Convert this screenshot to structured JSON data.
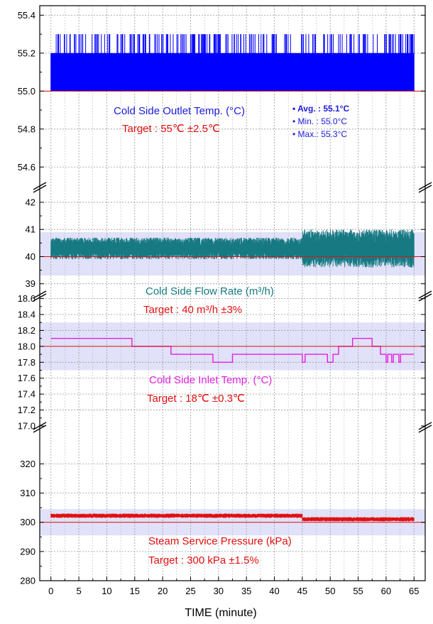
{
  "chart_data": {
    "type": "line",
    "xlabel": "TIME (minute)",
    "xlim": [
      -2,
      67
    ],
    "xticks": [
      0,
      5,
      10,
      15,
      20,
      25,
      30,
      35,
      40,
      45,
      50,
      55,
      60,
      65
    ],
    "grid": true,
    "panels": [
      {
        "ylim": [
          54.5,
          55.45
        ],
        "yticks": [
          55.4,
          55.2,
          55.0,
          54.8,
          54.6
        ],
        "ytick_labels": [
          "55.4",
          "55.2",
          "55.0",
          "54.8",
          "54.6"
        ],
        "target": 55.0,
        "band": null,
        "color": "#0000ff",
        "series": {
          "kind": "noise",
          "x_range": [
            0,
            65
          ],
          "base": 55.2,
          "spike_low": 55.0,
          "spike_high": 55.3,
          "segments": []
        },
        "title": "Cold  Side Outlet Temp. (°C)",
        "target_text": "Target : 55℃ ±2.5℃",
        "stats": [
          "• Avg. : 55.1°C",
          "• Min. : 55.0°C",
          "• Max.: 55.3°C"
        ]
      },
      {
        "ylim": [
          38.6,
          42.6
        ],
        "yticks": [
          42,
          41,
          40,
          39
        ],
        "ytick_labels": [
          "42",
          "41",
          "40",
          "39"
        ],
        "target": 40,
        "band": [
          39.3,
          40.9
        ],
        "color": "#177a82",
        "series": {
          "kind": "band_noise",
          "x_range": [
            0,
            65
          ],
          "segments": [
            {
              "x": [
                0,
                45
              ],
              "low": 39.9,
              "high": 40.7
            },
            {
              "x": [
                45,
                65
              ],
              "low": 39.6,
              "high": 41.0
            }
          ]
        },
        "title": "Cold Side Flow Rate (m³/h)",
        "target_text": "Target : 40 m³/h ±3%"
      },
      {
        "ylim": [
          17.0,
          18.65
        ],
        "yticks": [
          18.6,
          18.4,
          18.2,
          18.0,
          17.8,
          17.6,
          17.4,
          17.2,
          17.0
        ],
        "ytick_labels": [
          "18.6",
          "18.4",
          "18.2",
          "18.0",
          "17.8",
          "17.6",
          "17.4",
          "17.2",
          "17.0"
        ],
        "target": 18.0,
        "band": [
          17.7,
          18.3
        ],
        "color": "#e020e0",
        "series": {
          "kind": "step",
          "points": [
            [
              0,
              18.1
            ],
            [
              14.5,
              18.1
            ],
            [
              14.5,
              18.0
            ],
            [
              21.5,
              18.0
            ],
            [
              21.5,
              17.9
            ],
            [
              29,
              17.9
            ],
            [
              29,
              17.8
            ],
            [
              32.5,
              17.8
            ],
            [
              32.5,
              17.9
            ],
            [
              45,
              17.9
            ],
            [
              45,
              17.8
            ],
            [
              45.5,
              17.8
            ],
            [
              45.5,
              17.9
            ],
            [
              49.5,
              17.9
            ],
            [
              49.5,
              17.8
            ],
            [
              50.5,
              17.8
            ],
            [
              50.5,
              17.9
            ],
            [
              51.5,
              17.9
            ],
            [
              51.5,
              18.0
            ],
            [
              54,
              18.0
            ],
            [
              54,
              18.1
            ],
            [
              57.5,
              18.1
            ],
            [
              57.5,
              18.0
            ],
            [
              59,
              18.0
            ],
            [
              59,
              17.9
            ],
            [
              60,
              17.9
            ],
            [
              60,
              17.8
            ],
            [
              60.3,
              17.8
            ],
            [
              60.3,
              17.9
            ],
            [
              61,
              17.9
            ],
            [
              61,
              17.8
            ],
            [
              61.3,
              17.8
            ],
            [
              61.3,
              17.9
            ],
            [
              62.3,
              17.9
            ],
            [
              62.3,
              17.8
            ],
            [
              62.6,
              17.8
            ],
            [
              62.6,
              17.9
            ],
            [
              65,
              17.9
            ]
          ]
        },
        "title": "Cold Side Inlet Temp. (°C)",
        "target_text": "Target : 18℃ ±0.3℃"
      },
      {
        "ylim": [
          280,
          333
        ],
        "yticks": [
          320,
          310,
          300,
          290,
          280
        ],
        "ytick_labels": [
          "320",
          "310",
          "300",
          "290",
          "280"
        ],
        "target": 300,
        "band": [
          295.5,
          304.5
        ],
        "color": "#e01010",
        "series": {
          "kind": "band_noise",
          "x_range": [
            0,
            65
          ],
          "segments": [
            {
              "x": [
                0,
                45
              ],
              "low": 301.5,
              "high": 303.0
            },
            {
              "x": [
                45,
                65
              ],
              "low": 300.3,
              "high": 301.8
            }
          ]
        },
        "title": "Steam Service Pressure (kPa)",
        "target_text": "Target : 300 kPa ±1.5%"
      }
    ]
  }
}
